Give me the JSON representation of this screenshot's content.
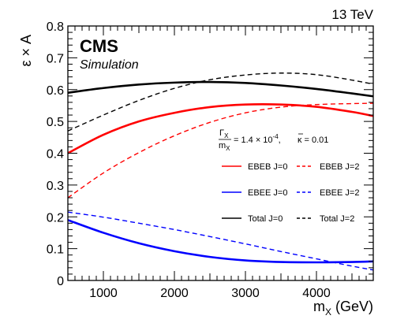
{
  "chart_data": {
    "type": "line",
    "top_right_label": "13 TeV",
    "experiment": "CMS",
    "subtitle": "Simulation",
    "xlabel": {
      "main": "m",
      "sub": "X",
      "rest": " (GeV)"
    },
    "ylabel": "ε × A",
    "xlim": [
      500,
      4800
    ],
    "ylim": [
      0,
      0.8
    ],
    "xticks": [
      1000,
      2000,
      3000,
      4000
    ],
    "xtick_labels": [
      "1000",
      "2000",
      "3000",
      "4000"
    ],
    "yticks": [
      0,
      0.1,
      0.2,
      0.3,
      0.4,
      0.5,
      0.6,
      0.7,
      0.8
    ],
    "ytick_labels": [
      "0",
      "0.1",
      "0.2",
      "0.3",
      "0.4",
      "0.5",
      "0.6",
      "0.7",
      "0.8"
    ],
    "grid": false,
    "annotation": {
      "frac_num": "Γ",
      "frac_num_sub": "X",
      "frac_den": "m",
      "frac_den_sub": "X",
      "width_value": "= 1.4 × 10",
      "width_exp": "-4",
      "width_tail": ",",
      "kappa_symbol": "κ",
      "kappa_value": "= 0.01"
    },
    "series": [
      {
        "name": "EBEB J=0",
        "color": "#ff0000",
        "dash": "solid",
        "width": 2.6,
        "x": [
          500,
          1000,
          1500,
          2000,
          2500,
          3000,
          3500,
          4000,
          4500,
          4800
        ],
        "y": [
          0.4,
          0.458,
          0.5,
          0.527,
          0.545,
          0.553,
          0.553,
          0.546,
          0.53,
          0.517
        ]
      },
      {
        "name": "EBEB J=2",
        "color": "#ff0000",
        "dash": "dashed",
        "width": 1.4,
        "x": [
          500,
          1000,
          1500,
          2000,
          2500,
          3000,
          3500,
          4000,
          4500,
          4800
        ],
        "y": [
          0.26,
          0.338,
          0.402,
          0.455,
          0.497,
          0.527,
          0.545,
          0.553,
          0.556,
          0.557
        ]
      },
      {
        "name": "EBEE J=0",
        "color": "#0000ff",
        "dash": "solid",
        "width": 2.6,
        "x": [
          500,
          1000,
          1500,
          2000,
          2500,
          3000,
          3500,
          4000,
          4500,
          4800
        ],
        "y": [
          0.19,
          0.15,
          0.117,
          0.092,
          0.074,
          0.063,
          0.058,
          0.057,
          0.058,
          0.06
        ]
      },
      {
        "name": "EBEE J=2",
        "color": "#0000ff",
        "dash": "dashed",
        "width": 1.4,
        "x": [
          500,
          1000,
          1500,
          2000,
          2500,
          3000,
          3500,
          4000,
          4500,
          4800
        ],
        "y": [
          0.215,
          0.199,
          0.18,
          0.16,
          0.138,
          0.115,
          0.091,
          0.068,
          0.045,
          0.033
        ]
      },
      {
        "name": "Total J=0",
        "color": "#000000",
        "dash": "solid",
        "width": 2.6,
        "x": [
          500,
          1000,
          1500,
          2000,
          2500,
          3000,
          3500,
          4000,
          4500,
          4800
        ],
        "y": [
          0.59,
          0.605,
          0.616,
          0.622,
          0.624,
          0.621,
          0.613,
          0.602,
          0.588,
          0.579
        ]
      },
      {
        "name": "Total J=2",
        "color": "#000000",
        "dash": "dashed",
        "width": 1.4,
        "x": [
          500,
          1000,
          1500,
          2000,
          2500,
          3000,
          3500,
          4000,
          4500,
          4800
        ],
        "y": [
          0.47,
          0.52,
          0.566,
          0.604,
          0.631,
          0.646,
          0.652,
          0.647,
          0.63,
          0.617
        ]
      }
    ]
  }
}
